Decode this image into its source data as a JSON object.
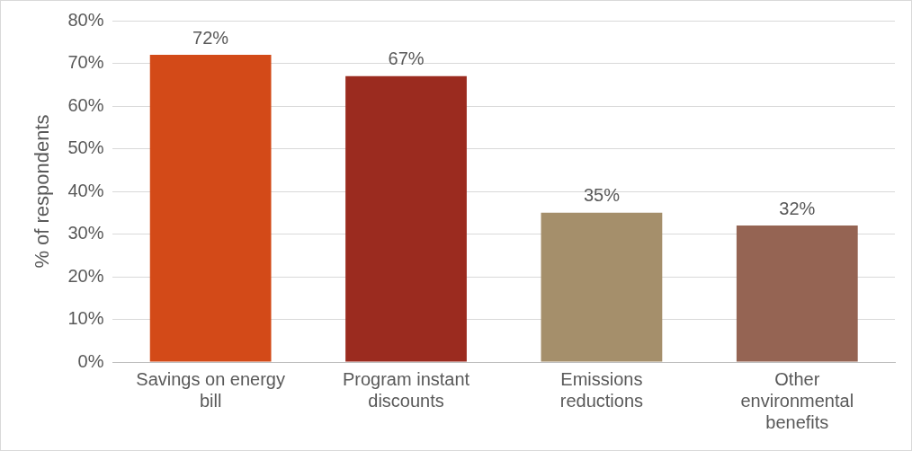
{
  "chart_data": {
    "type": "bar",
    "ylabel": "% of respondents",
    "categories": [
      "Savings on energy bill",
      "Program instant discounts",
      "Emissions reductions",
      "Other environmental benefits"
    ],
    "values": [
      72,
      67,
      35,
      32
    ],
    "colors": [
      "#d34a18",
      "#9b2b1f",
      "#a58f6b",
      "#956453"
    ],
    "ylim": [
      0,
      80
    ],
    "yticks": [
      {
        "value": 0,
        "label": "0%"
      },
      {
        "value": 10,
        "label": "10%"
      },
      {
        "value": 20,
        "label": "20%"
      },
      {
        "value": 30,
        "label": "30%"
      },
      {
        "value": 40,
        "label": "40%"
      },
      {
        "value": 50,
        "label": "50%"
      },
      {
        "value": 60,
        "label": "60%"
      },
      {
        "value": 70,
        "label": "70%"
      },
      {
        "value": 80,
        "label": "80%"
      }
    ],
    "value_labels": [
      "72%",
      "67%",
      "35%",
      "32%"
    ],
    "grid": "y",
    "legend": false
  }
}
